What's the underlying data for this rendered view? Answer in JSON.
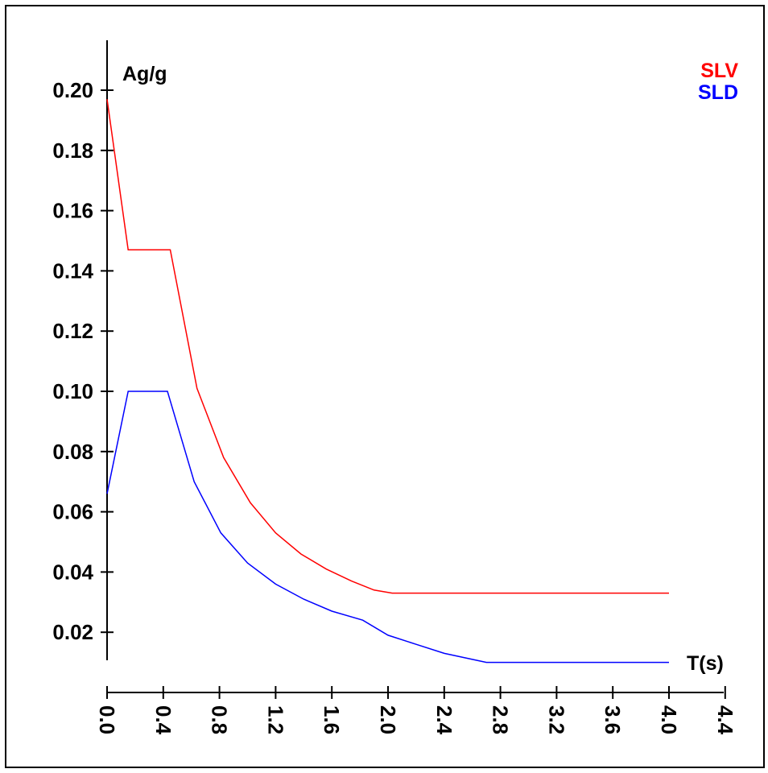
{
  "chart_data": {
    "type": "line",
    "ylabel": "Ag/g",
    "xlabel": "T(s)",
    "xlim": [
      0.0,
      4.4
    ],
    "ylim": [
      0.0,
      0.21
    ],
    "x_ticks": [
      "0.0",
      "0.4",
      "0.8",
      "1.2",
      "1.6",
      "2.0",
      "2.4",
      "2.8",
      "3.2",
      "3.6",
      "4.0",
      "4.4"
    ],
    "y_ticks": [
      "0.02",
      "0.04",
      "0.06",
      "0.08",
      "0.10",
      "0.12",
      "0.14",
      "0.16",
      "0.18",
      "0.20"
    ],
    "grid": false,
    "legend_position": "top-right",
    "series": [
      {
        "name": "SLV",
        "color": "#ff0000",
        "x": [
          0.0,
          0.15,
          0.45,
          0.64,
          0.83,
          1.02,
          1.2,
          1.38,
          1.56,
          1.74,
          1.9,
          2.03,
          4.0
        ],
        "y": [
          0.197,
          0.147,
          0.147,
          0.101,
          0.078,
          0.063,
          0.053,
          0.046,
          0.041,
          0.037,
          0.034,
          0.033,
          0.033
        ]
      },
      {
        "name": "SLD",
        "color": "#0000ff",
        "x": [
          0.0,
          0.15,
          0.43,
          0.62,
          0.81,
          1.0,
          1.2,
          1.4,
          1.6,
          1.82,
          2.0,
          2.2,
          2.4,
          2.6,
          2.7,
          4.0
        ],
        "y": [
          0.066,
          0.1,
          0.1,
          0.07,
          0.053,
          0.043,
          0.036,
          0.031,
          0.027,
          0.024,
          0.019,
          0.016,
          0.013,
          0.011,
          0.01,
          0.01
        ]
      }
    ]
  }
}
